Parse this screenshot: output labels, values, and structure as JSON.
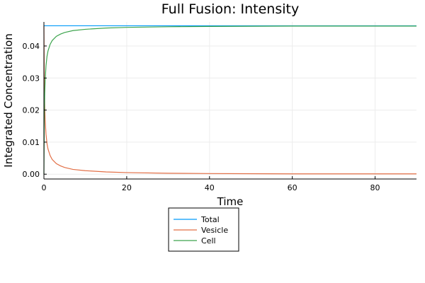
{
  "chart_data": {
    "type": "line",
    "title": "Full Fusion: Intensity",
    "xlabel": "Time",
    "ylabel": "Integrated Concentration",
    "xlim": [
      0,
      90
    ],
    "ylim": [
      -0.0015,
      0.0475
    ],
    "xticks": [
      0,
      20,
      40,
      60,
      80
    ],
    "xtick_labels": [
      "0",
      "20",
      "40",
      "60",
      "80"
    ],
    "yticks": [
      0.0,
      0.01,
      0.02,
      0.03,
      0.04
    ],
    "ytick_labels": [
      "0.00",
      "0.01",
      "0.02",
      "0.03",
      "0.04"
    ],
    "grid": true,
    "legend_position": "bottom-center, below plot",
    "series": [
      {
        "name": "Total",
        "color": "#009af9",
        "x": [
          0,
          10,
          20,
          40,
          60,
          80,
          90
        ],
        "y": [
          0.0463,
          0.0463,
          0.0463,
          0.0463,
          0.0463,
          0.0463,
          0.0463
        ]
      },
      {
        "name": "Vesicle",
        "color": "#e26f46",
        "x": [
          0,
          0.1,
          0.2,
          0.3,
          0.5,
          0.75,
          1,
          1.5,
          2,
          3,
          4,
          5,
          7,
          10,
          15,
          20,
          30,
          40,
          60,
          80,
          90
        ],
        "y": [
          0.0463,
          0.028,
          0.021,
          0.017,
          0.0125,
          0.0095,
          0.0078,
          0.0058,
          0.0046,
          0.0033,
          0.0026,
          0.0021,
          0.0015,
          0.0011,
          0.0007,
          0.0005,
          0.0003,
          0.0002,
          0.0001,
          0.0001,
          0.0001
        ]
      },
      {
        "name": "Cell",
        "color": "#3da44d",
        "x": [
          0,
          0.1,
          0.2,
          0.3,
          0.5,
          0.75,
          1,
          1.5,
          2,
          3,
          4,
          5,
          7,
          10,
          15,
          20,
          30,
          40,
          60,
          80,
          90
        ],
        "y": [
          0.0,
          0.0183,
          0.0253,
          0.0293,
          0.0338,
          0.0368,
          0.0385,
          0.0405,
          0.0417,
          0.043,
          0.0437,
          0.0442,
          0.0448,
          0.0452,
          0.0456,
          0.0458,
          0.046,
          0.0461,
          0.0462,
          0.0462,
          0.0462
        ]
      }
    ]
  }
}
